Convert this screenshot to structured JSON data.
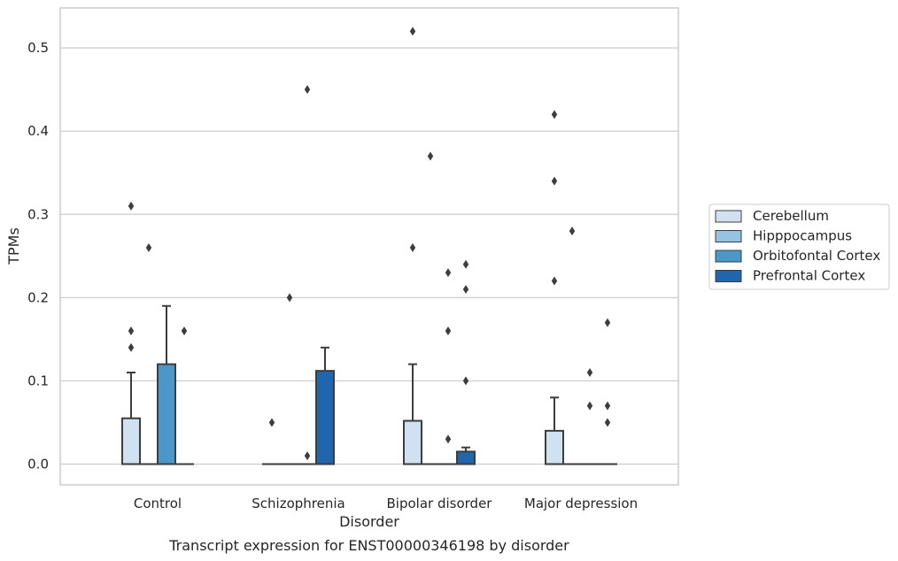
{
  "chart_data": {
    "type": "box",
    "title": "",
    "caption": "Transcript expression for ENST00000346198 by disorder",
    "xlabel": "Disorder",
    "ylabel": "TPMs",
    "ylim": [
      -0.025,
      0.548
    ],
    "yticks": [
      0.0,
      0.1,
      0.2,
      0.3,
      0.4,
      0.5
    ],
    "ytick_labels": [
      "0.0",
      "0.1",
      "0.2",
      "0.3",
      "0.4",
      "0.5"
    ],
    "grid": "horizontal",
    "legend_position": "right",
    "categories": [
      "Control",
      "Schizophrenia",
      "Bipolar disorder",
      "Major depression"
    ],
    "series": [
      {
        "name": "Cerebellum",
        "color": "#d0e1f2",
        "boxes": [
          {
            "q1": 0.0,
            "median": 0.0,
            "q3": 0.055,
            "whisker_low": 0.0,
            "whisker_high": 0.11,
            "outliers": [
              0.14,
              0.16,
              0.31
            ]
          },
          {
            "q1": 0.0,
            "median": 0.0,
            "q3": 0.0,
            "whisker_low": 0.0,
            "whisker_high": 0.0,
            "outliers": [
              0.05
            ]
          },
          {
            "q1": 0.0,
            "median": 0.0,
            "q3": 0.052,
            "whisker_low": 0.0,
            "whisker_high": 0.12,
            "outliers": [
              0.26,
              0.52
            ]
          },
          {
            "q1": 0.0,
            "median": 0.0,
            "q3": 0.04,
            "whisker_low": 0.0,
            "whisker_high": 0.08,
            "outliers": [
              0.22,
              0.34,
              0.42
            ]
          }
        ]
      },
      {
        "name": "Hipppocampus",
        "color": "#94c4df",
        "boxes": [
          {
            "q1": 0.0,
            "median": 0.0,
            "q3": 0.0,
            "whisker_low": 0.0,
            "whisker_high": 0.0,
            "outliers": [
              0.26
            ]
          },
          {
            "q1": 0.0,
            "median": 0.0,
            "q3": 0.0,
            "whisker_low": 0.0,
            "whisker_high": 0.0,
            "outliers": [
              0.2
            ]
          },
          {
            "q1": 0.0,
            "median": 0.0,
            "q3": 0.0,
            "whisker_low": 0.0,
            "whisker_high": 0.0,
            "outliers": [
              0.37
            ]
          },
          {
            "q1": 0.0,
            "median": 0.0,
            "q3": 0.0,
            "whisker_low": 0.0,
            "whisker_high": 0.0,
            "outliers": [
              0.28
            ]
          }
        ]
      },
      {
        "name": "Orbitofontal Cortex",
        "color": "#4a98c9",
        "boxes": [
          {
            "q1": 0.0,
            "median": 0.0,
            "q3": 0.12,
            "whisker_low": 0.0,
            "whisker_high": 0.19,
            "outliers": []
          },
          {
            "q1": 0.0,
            "median": 0.0,
            "q3": 0.0,
            "whisker_low": 0.0,
            "whisker_high": 0.0,
            "outliers": [
              0.01,
              0.45
            ]
          },
          {
            "q1": 0.0,
            "median": 0.0,
            "q3": 0.0,
            "whisker_low": 0.0,
            "whisker_high": 0.0,
            "outliers": [
              0.03,
              0.16,
              0.23
            ]
          },
          {
            "q1": 0.0,
            "median": 0.0,
            "q3": 0.0,
            "whisker_low": 0.0,
            "whisker_high": 0.0,
            "outliers": [
              0.07,
              0.11
            ]
          }
        ]
      },
      {
        "name": "Prefrontal Cortex",
        "color": "#2166ac",
        "boxes": [
          {
            "q1": 0.0,
            "median": 0.0,
            "q3": 0.0,
            "whisker_low": 0.0,
            "whisker_high": 0.0,
            "outliers": [
              0.16
            ]
          },
          {
            "q1": 0.0,
            "median": 0.0,
            "q3": 0.112,
            "whisker_low": 0.0,
            "whisker_high": 0.14,
            "outliers": []
          },
          {
            "q1": 0.0,
            "median": 0.0,
            "q3": 0.015,
            "whisker_low": 0.0,
            "whisker_high": 0.02,
            "outliers": [
              0.1,
              0.21,
              0.24
            ]
          },
          {
            "q1": 0.0,
            "median": 0.0,
            "q3": 0.0,
            "whisker_low": 0.0,
            "whisker_high": 0.0,
            "outliers": [
              0.05,
              0.07,
              0.17
            ]
          }
        ]
      }
    ]
  },
  "colors": {
    "grid": "#cccccc",
    "frame": "#cccccc",
    "box_edge": "#3d3d3d",
    "text": "#262626"
  }
}
